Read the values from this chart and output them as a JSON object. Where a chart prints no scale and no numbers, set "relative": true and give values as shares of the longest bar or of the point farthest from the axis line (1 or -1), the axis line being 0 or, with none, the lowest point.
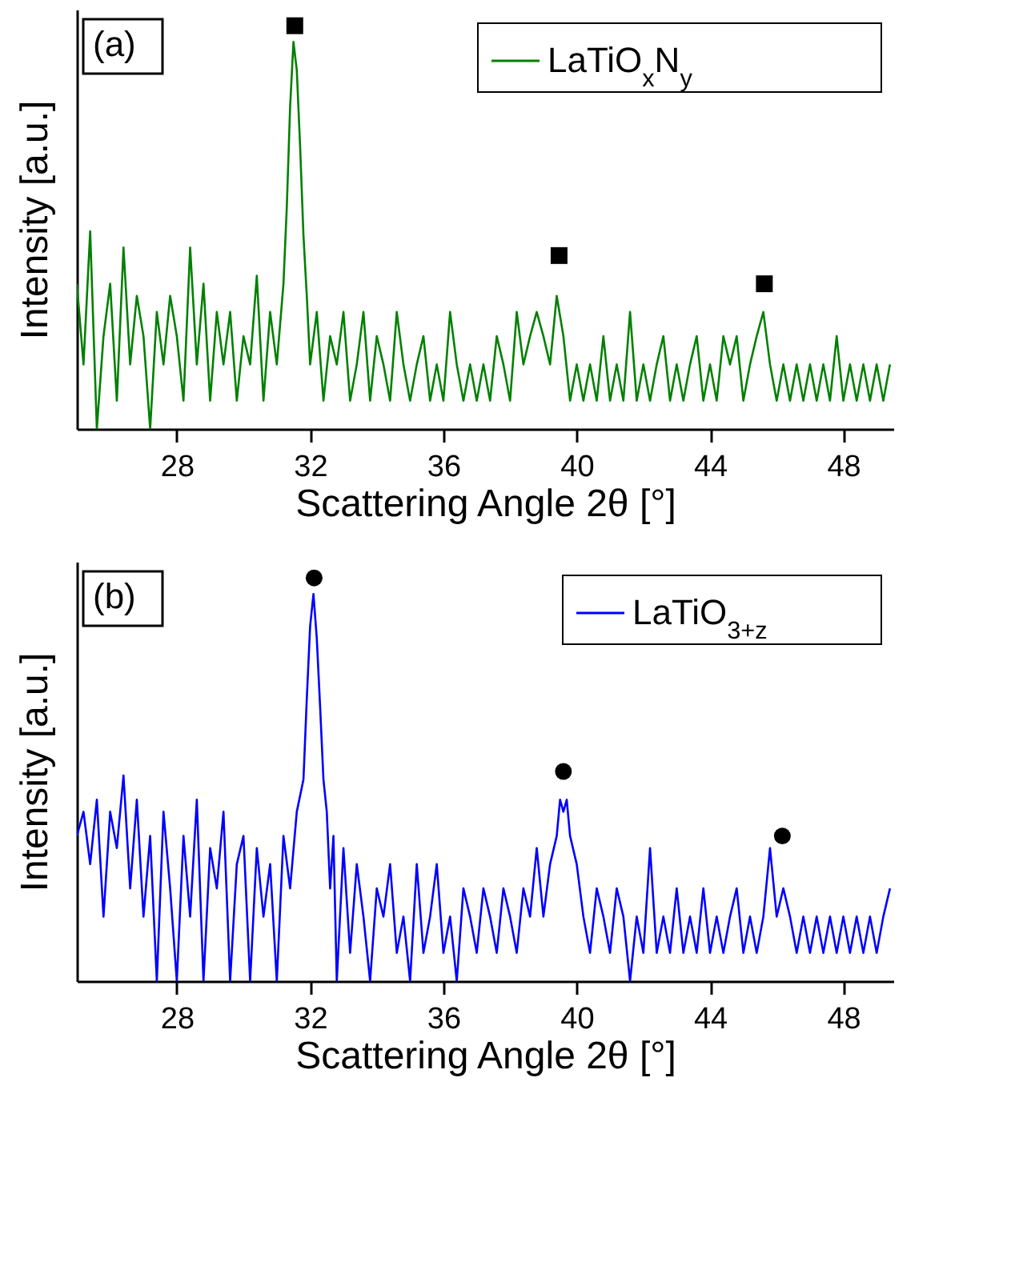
{
  "chart_data": [
    {
      "type": "line",
      "relative": true,
      "xlabel": "Scattering Angle 2θ [°]",
      "ylabel": "Intensity [a.u.]",
      "xlim": [
        25,
        49.5
      ],
      "xticks": [
        28,
        32,
        36,
        40,
        44,
        48
      ],
      "tick_labels": "x",
      "legend": "top right",
      "annotations": [
        "(a)"
      ],
      "series": [
        {
          "name": "LaTiO$_{x}$N$_{y}$",
          "color": "#008000",
          "x": [
            25.0,
            25.2,
            25.4,
            25.6,
            25.8,
            26.0,
            26.2,
            26.4,
            26.6,
            26.8,
            27.0,
            27.2,
            27.4,
            27.6,
            27.8,
            28.0,
            28.2,
            28.4,
            28.6,
            28.8,
            29.0,
            29.2,
            29.4,
            29.6,
            29.8,
            30.0,
            30.2,
            30.4,
            30.6,
            30.8,
            31.0,
            31.2,
            31.3,
            31.4,
            31.5,
            31.6,
            31.7,
            31.8,
            31.9,
            32.0,
            32.2,
            32.4,
            32.6,
            32.8,
            33.0,
            33.2,
            33.4,
            33.6,
            33.8,
            34.0,
            34.2,
            34.4,
            34.6,
            34.8,
            35.0,
            35.2,
            35.4,
            35.6,
            35.8,
            36.0,
            36.2,
            36.4,
            36.6,
            36.8,
            37.0,
            37.2,
            37.4,
            37.6,
            37.8,
            38.0,
            38.2,
            38.4,
            38.6,
            38.8,
            39.0,
            39.2,
            39.4,
            39.6,
            39.8,
            40.0,
            40.2,
            40.4,
            40.6,
            40.8,
            41.0,
            41.2,
            41.4,
            41.6,
            41.8,
            42.0,
            42.2,
            42.4,
            42.6,
            42.8,
            43.0,
            43.2,
            43.4,
            43.6,
            43.8,
            44.0,
            44.2,
            44.4,
            44.6,
            44.8,
            45.0,
            45.2,
            45.4,
            45.6,
            45.8,
            46.0,
            46.2,
            46.4,
            46.6,
            46.8,
            47.0,
            47.2,
            47.4,
            47.6,
            47.8,
            48.0,
            48.2,
            48.4,
            48.6,
            48.8,
            49.0,
            49.2,
            49.4
          ],
          "values": [
            0.36,
            0.16,
            0.49,
            0,
            0.23,
            0.36,
            0.07,
            0.45,
            0.16,
            0.33,
            0.23,
            0,
            0.29,
            0.16,
            0.33,
            0.23,
            0.07,
            0.45,
            0.16,
            0.36,
            0.07,
            0.29,
            0.16,
            0.29,
            0.07,
            0.23,
            0.16,
            0.38,
            0.07,
            0.29,
            0.16,
            0.36,
            0.55,
            0.8,
            0.96,
            0.89,
            0.7,
            0.48,
            0.33,
            0.16,
            0.29,
            0.07,
            0.23,
            0.16,
            0.29,
            0.07,
            0.16,
            0.29,
            0.07,
            0.23,
            0.16,
            0.07,
            0.29,
            0.16,
            0.07,
            0.16,
            0.23,
            0.07,
            0.16,
            0.07,
            0.29,
            0.16,
            0.07,
            0.16,
            0.07,
            0.16,
            0.07,
            0.23,
            0.16,
            0.07,
            0.29,
            0.16,
            0.23,
            0.29,
            0.23,
            0.16,
            0.33,
            0.23,
            0.07,
            0.16,
            0.07,
            0.16,
            0.07,
            0.23,
            0.07,
            0.16,
            0.07,
            0.29,
            0.07,
            0.16,
            0.07,
            0.16,
            0.23,
            0.07,
            0.16,
            0.07,
            0.16,
            0.23,
            0.07,
            0.16,
            0.07,
            0.23,
            0.16,
            0.23,
            0.07,
            0.16,
            0.23,
            0.29,
            0.16,
            0.07,
            0.16,
            0.07,
            0.16,
            0.07,
            0.16,
            0.07,
            0.16,
            0.07,
            0.23,
            0.07,
            0.16,
            0.07,
            0.16,
            0.07,
            0.16,
            0.07,
            0.16
          ]
        },
        {
          "type": "scatter",
          "marker": "square",
          "color": "#000000",
          "x": [
            31.54,
            39.47,
            45.63
          ],
          "values": [
            1,
            0.43,
            0.36
          ]
        }
      ]
    },
    {
      "type": "line",
      "relative": true,
      "xlabel": "Scattering Angle 2θ [°]",
      "ylabel": "Intensity [a.u.]",
      "xlim": [
        25,
        49.5
      ],
      "xticks": [
        28,
        32,
        36,
        40,
        44,
        48
      ],
      "tick_labels": "x",
      "legend": "top right",
      "annotations": [
        "(b)"
      ],
      "series": [
        {
          "name": "LaTiO$_{3+z}$",
          "color": "#0000ff",
          "x": [
            25.0,
            25.2,
            25.4,
            25.6,
            25.8,
            26.0,
            26.2,
            26.4,
            26.6,
            26.8,
            27.0,
            27.2,
            27.4,
            27.6,
            27.8,
            28.0,
            28.2,
            28.4,
            28.6,
            28.8,
            29.0,
            29.2,
            29.4,
            29.6,
            29.8,
            30.0,
            30.2,
            30.4,
            30.6,
            30.8,
            31.0,
            31.2,
            31.4,
            31.6,
            31.8,
            31.9,
            32.0,
            32.1,
            32.2,
            32.3,
            32.4,
            32.5,
            32.6,
            32.7,
            32.8,
            33.0,
            33.2,
            33.4,
            33.6,
            33.8,
            34.0,
            34.2,
            34.4,
            34.6,
            34.8,
            35.0,
            35.2,
            35.4,
            35.6,
            35.8,
            36.0,
            36.2,
            36.4,
            36.6,
            36.8,
            37.0,
            37.2,
            37.4,
            37.6,
            37.8,
            38.0,
            38.2,
            38.4,
            38.6,
            38.8,
            39.0,
            39.2,
            39.4,
            39.5,
            39.6,
            39.7,
            39.8,
            40.0,
            40.2,
            40.4,
            40.6,
            40.8,
            41.0,
            41.2,
            41.4,
            41.6,
            41.8,
            42.0,
            42.2,
            42.4,
            42.6,
            42.8,
            43.0,
            43.2,
            43.4,
            43.6,
            43.8,
            44.0,
            44.2,
            44.4,
            44.6,
            44.8,
            45.0,
            45.2,
            45.4,
            45.6,
            45.8,
            46.0,
            46.2,
            46.4,
            46.6,
            46.8,
            47.0,
            47.2,
            47.4,
            47.6,
            47.8,
            48.0,
            48.2,
            48.4,
            48.6,
            48.8,
            49.0,
            49.2,
            49.4
          ],
          "values": [
            0.36,
            0.42,
            0.29,
            0.45,
            0.16,
            0.42,
            0.33,
            0.51,
            0.23,
            0.45,
            0.16,
            0.36,
            0,
            0.42,
            0.23,
            0,
            0.36,
            0.16,
            0.45,
            0,
            0.33,
            0.23,
            0.42,
            0,
            0.29,
            0.36,
            0,
            0.33,
            0.16,
            0.29,
            0,
            0.36,
            0.23,
            0.42,
            0.5,
            0.7,
            0.88,
            0.96,
            0.85,
            0.68,
            0.5,
            0.42,
            0.23,
            0.36,
            0,
            0.33,
            0.07,
            0.29,
            0.16,
            0,
            0.23,
            0.16,
            0.29,
            0.07,
            0.16,
            0,
            0.29,
            0.07,
            0.16,
            0.29,
            0.07,
            0.16,
            0,
            0.23,
            0.16,
            0.07,
            0.23,
            0.16,
            0.07,
            0.23,
            0.16,
            0.07,
            0.23,
            0.16,
            0.33,
            0.16,
            0.29,
            0.36,
            0.45,
            0.42,
            0.45,
            0.36,
            0.29,
            0.16,
            0.07,
            0.23,
            0.16,
            0.07,
            0.23,
            0.16,
            0,
            0.16,
            0.07,
            0.33,
            0.07,
            0.16,
            0.07,
            0.23,
            0.07,
            0.16,
            0.07,
            0.23,
            0.07,
            0.16,
            0.07,
            0.16,
            0.23,
            0.07,
            0.16,
            0.07,
            0.16,
            0.33,
            0.16,
            0.23,
            0.16,
            0.07,
            0.16,
            0.07,
            0.16,
            0.07,
            0.16,
            0.07,
            0.16,
            0.07,
            0.16,
            0.07,
            0.16,
            0.07,
            0.16,
            0.23
          ]
        },
        {
          "type": "scatter",
          "marker": "circle",
          "color": "#000000",
          "x": [
            32.12,
            39.6,
            46.17
          ],
          "values": [
            1,
            0.52,
            0.36
          ]
        }
      ]
    }
  ]
}
